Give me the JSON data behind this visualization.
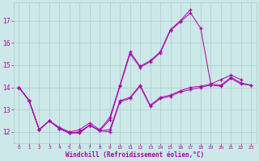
{
  "background_color": "#cce8e8",
  "grid_color": "#aacccc",
  "line_color": "#aa00aa",
  "marker_color": "#aa00aa",
  "xlabel": "Windchill (Refroidissement éolien,°C)",
  "xlabel_color": "#aa00aa",
  "tick_color": "#aa00aa",
  "xlim": [
    -0.5,
    23.5
  ],
  "ylim": [
    11.5,
    17.8
  ],
  "yticks": [
    12,
    13,
    14,
    15,
    16,
    17
  ],
  "xticks": [
    0,
    1,
    2,
    3,
    4,
    5,
    6,
    7,
    8,
    9,
    10,
    11,
    12,
    13,
    14,
    15,
    16,
    17,
    18,
    19,
    20,
    21,
    22,
    23
  ],
  "series": [
    [
      14.0,
      13.4,
      12.1,
      12.5,
      12.15,
      11.95,
      11.95,
      12.3,
      12.05,
      12.0,
      13.35,
      13.5,
      14.05,
      13.15,
      13.5,
      13.6,
      13.8,
      13.9,
      14.0,
      14.1,
      14.05,
      14.4,
      14.15,
      14.1
    ],
    [
      14.0,
      13.4,
      12.1,
      12.5,
      12.15,
      11.95,
      12.0,
      12.3,
      12.05,
      12.55,
      14.05,
      15.5,
      14.9,
      15.15,
      15.55,
      16.55,
      16.95,
      17.35,
      16.65,
      14.15,
      14.35,
      14.55,
      14.35,
      null
    ],
    [
      14.0,
      13.4,
      12.1,
      12.5,
      12.2,
      12.0,
      12.1,
      12.4,
      12.1,
      12.65,
      14.1,
      15.6,
      14.95,
      15.2,
      15.6,
      16.6,
      17.0,
      17.5,
      null,
      null,
      null,
      null,
      null,
      null
    ],
    [
      14.0,
      13.4,
      12.1,
      12.5,
      12.15,
      11.95,
      12.0,
      12.3,
      12.05,
      12.1,
      13.4,
      13.55,
      14.1,
      13.2,
      13.55,
      13.65,
      13.85,
      14.0,
      14.05,
      14.15,
      14.1,
      14.45,
      14.2,
      14.1
    ]
  ]
}
